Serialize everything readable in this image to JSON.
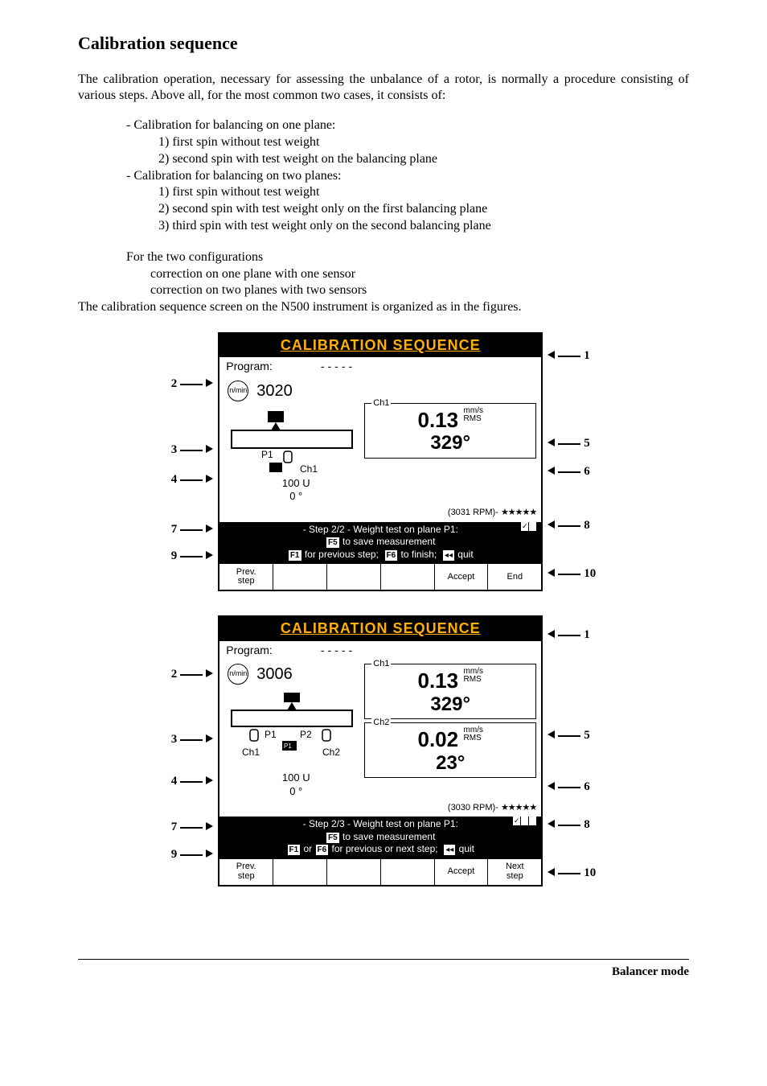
{
  "heading": "Calibration sequence",
  "intro": "The calibration operation, necessary for assessing the unbalance of a rotor, is normally a procedure consisting of various steps. Above all, for the most common two cases, it consists of:",
  "list1_title": "- Calibration for balancing on one plane:",
  "list1_1": "1) first spin without test weight",
  "list1_2": "2) second spin with test weight on the balancing plane",
  "list2_title": "- Calibration for balancing on two planes:",
  "list2_1": "1) first spin without test weight",
  "list2_2": "2) second spin with test weight only on the first balancing plane",
  "list2_3": "3) third spin with test weight only on the second balancing plane",
  "para2": "For the two configurations",
  "para2_a": "correction on one plane with one sensor",
  "para2_b": "correction on two planes with two sensors",
  "para3": "The calibration sequence screen on the N500 instrument is organized as in the figures.",
  "screen_title": "CALIBRATION SEQUENCE",
  "program_label": "Program:",
  "program_value": "-----",
  "fig1": {
    "left_callouts": [
      "2",
      "3",
      "4",
      "7",
      "9"
    ],
    "left_heights": [
      22,
      62,
      18,
      42,
      14
    ],
    "right_callouts": [
      "1",
      "5",
      "6",
      "8",
      "10"
    ],
    "right_heights": [
      8,
      90,
      15,
      48,
      40
    ],
    "rpm": "3020",
    "plane_label": "P1",
    "ch_label": "Ch1",
    "weight_u": "100 U",
    "weight_deg": "0 °",
    "reading1": {
      "ch": "Ch1",
      "val": "0.13",
      "unit1": "mm/s",
      "unit2": "RMS",
      "angle": "329°"
    },
    "stability_rpm": "(3031 RPM)-",
    "stars": "★★★★★",
    "status_line1": "- Step 2/2 - Weight test on plane P1:",
    "status_line2_pre": "F5",
    "status_line2_post": " to save measurement",
    "status_line3": "F1 for previous step;  F6 to finish;  ◂◂ quit",
    "fkeys": [
      "Prev.\nstep",
      "",
      "",
      "",
      "Accept",
      "End"
    ]
  },
  "fig2": {
    "left_callouts": [
      "2",
      "3",
      "4",
      "7",
      "9"
    ],
    "left_heights": [
      34,
      62,
      32,
      38,
      14
    ],
    "right_callouts": [
      "1",
      "5",
      "6",
      "8",
      "10"
    ],
    "right_heights": [
      8,
      106,
      44,
      28,
      40
    ],
    "rpm": "3006",
    "p1": "P1",
    "p2": "P2",
    "ch1": "Ch1",
    "ch2": "Ch2",
    "weight_u": "100 U",
    "weight_deg": "0 °",
    "reading1": {
      "ch": "Ch1",
      "val": "0.13",
      "unit1": "mm/s",
      "unit2": "RMS",
      "angle": "329°"
    },
    "reading2": {
      "ch": "Ch2",
      "val": "0.02",
      "unit1": "mm/s",
      "unit2": "RMS",
      "angle": "23°"
    },
    "stability_rpm": "(3030 RPM)-",
    "stars": "★★★★★",
    "status_line1": "- Step 2/3 - Weight test on plane P1:",
    "status_line2_pre": "F5",
    "status_line2_post": " to save measurement",
    "status_line3": "F1 or F6 for previous or next step;  ◂◂ quit",
    "fkeys": [
      "Prev.\nstep",
      "",
      "",
      "",
      "Accept",
      "Next\nstep"
    ]
  },
  "footer": "Balancer mode"
}
